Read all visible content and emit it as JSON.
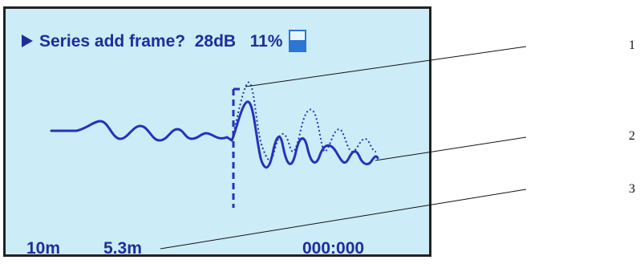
{
  "screen": {
    "status_text": "Series add frame?  28dB   11%",
    "icons": {
      "play": "play-triangle-icon",
      "battery": "battery-icon"
    },
    "battery_level": 0.55,
    "range": "10m",
    "distance": "5.3m",
    "time": "000:000"
  },
  "callouts": [
    "1",
    "2",
    "3"
  ],
  "colors": {
    "screen_bg": "#ccecf7",
    "text": "#1e2d9c",
    "wave": "#2233bb",
    "battery": "#2a75d6"
  }
}
